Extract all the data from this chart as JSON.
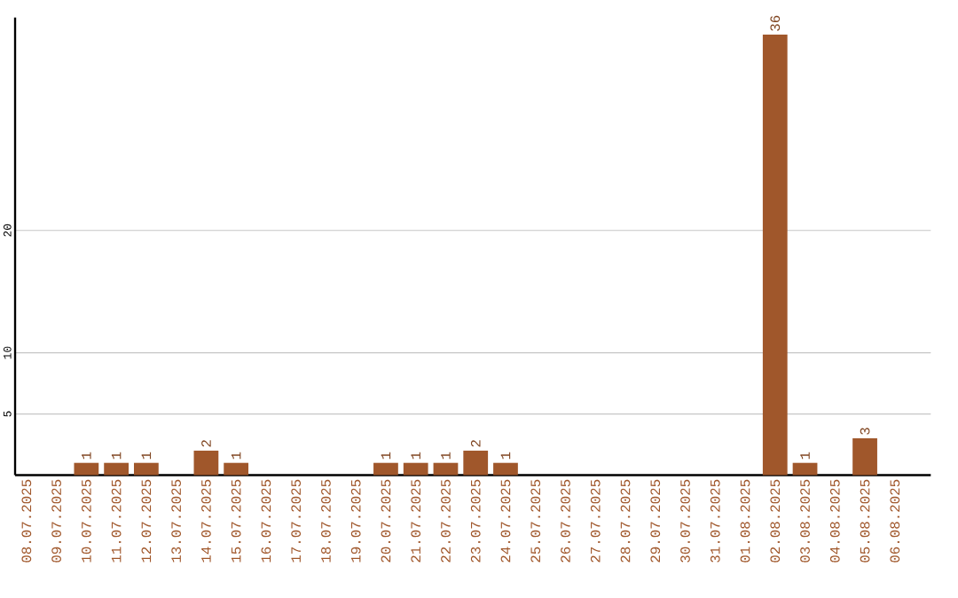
{
  "chart_data": {
    "type": "bar",
    "categories": [
      "08.07.2025",
      "09.07.2025",
      "10.07.2025",
      "11.07.2025",
      "12.07.2025",
      "13.07.2025",
      "14.07.2025",
      "15.07.2025",
      "16.07.2025",
      "17.07.2025",
      "18.07.2025",
      "19.07.2025",
      "20.07.2025",
      "21.07.2025",
      "22.07.2025",
      "23.07.2025",
      "24.07.2025",
      "25.07.2025",
      "26.07.2025",
      "27.07.2025",
      "28.07.2025",
      "29.07.2025",
      "30.07.2025",
      "31.07.2025",
      "01.08.2025",
      "02.08.2025",
      "03.08.2025",
      "04.08.2025",
      "05.08.2025",
      "06.08.2025"
    ],
    "values": [
      0,
      0,
      1,
      1,
      1,
      0,
      2,
      1,
      0,
      0,
      0,
      0,
      1,
      1,
      1,
      2,
      1,
      0,
      0,
      0,
      0,
      0,
      0,
      0,
      0,
      36,
      1,
      0,
      3,
      0
    ],
    "value_labels": [
      null,
      null,
      "1",
      "1",
      "1",
      null,
      "2",
      "1",
      null,
      null,
      null,
      null,
      "1",
      "1",
      "1",
      "2",
      "1",
      null,
      null,
      null,
      null,
      null,
      null,
      null,
      null,
      "36",
      "1",
      null,
      "3",
      null
    ],
    "color": "#a0572b",
    "ylim": [
      0,
      37.4
    ],
    "yticks": [
      5,
      10,
      20
    ],
    "grid": "y"
  }
}
